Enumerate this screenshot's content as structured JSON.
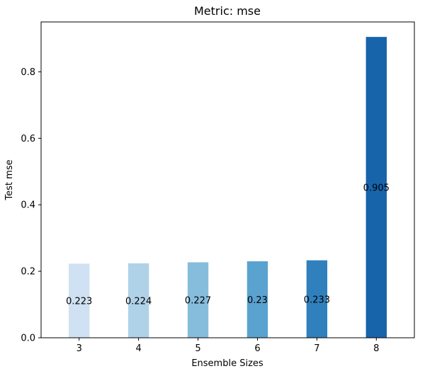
{
  "chart_data": {
    "type": "bar",
    "title": "Metric: mse",
    "xlabel": "Ensemble Sizes",
    "ylabel": "Test mse",
    "categories": [
      "3",
      "4",
      "5",
      "6",
      "7",
      "8"
    ],
    "values": [
      0.223,
      0.224,
      0.227,
      0.23,
      0.233,
      0.905
    ],
    "data_labels": [
      "0.223",
      "0.224",
      "0.227",
      "0.23",
      "0.233",
      "0.905"
    ],
    "bar_colors": [
      "#cfe1f2",
      "#b0d2e8",
      "#87bddc",
      "#5aa2cf",
      "#3080bd",
      "#1764ab"
    ],
    "ylim": [
      0,
      0.95
    ],
    "yticks": [
      0.0,
      0.2,
      0.4,
      0.6,
      0.8
    ],
    "ytick_labels": [
      "0.0",
      "0.2",
      "0.4",
      "0.6",
      "0.8"
    ],
    "grid": false,
    "legend": false
  }
}
